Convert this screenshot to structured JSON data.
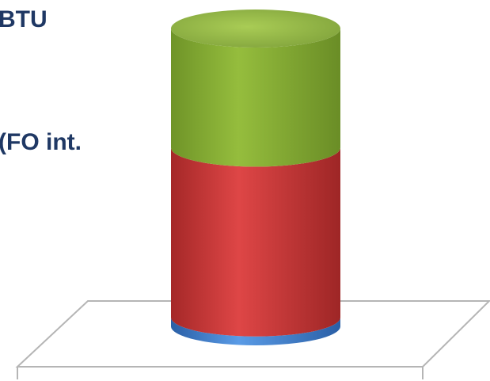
{
  "legend_text": [
    "BTU",
    "(FO int."
  ],
  "chart_data": {
    "type": "bar",
    "style": "3d-stacked-cylinder",
    "categories": [
      ""
    ],
    "series": [
      {
        "values": [
          3
        ],
        "color": "#3f7fd0"
      },
      {
        "values": [
          57
        ],
        "color": "#c63a3a"
      },
      {
        "values": [
          40
        ],
        "color": "#8bb036"
      }
    ],
    "ylim": [
      0,
      100
    ],
    "grid": false,
    "legend": "left"
  }
}
